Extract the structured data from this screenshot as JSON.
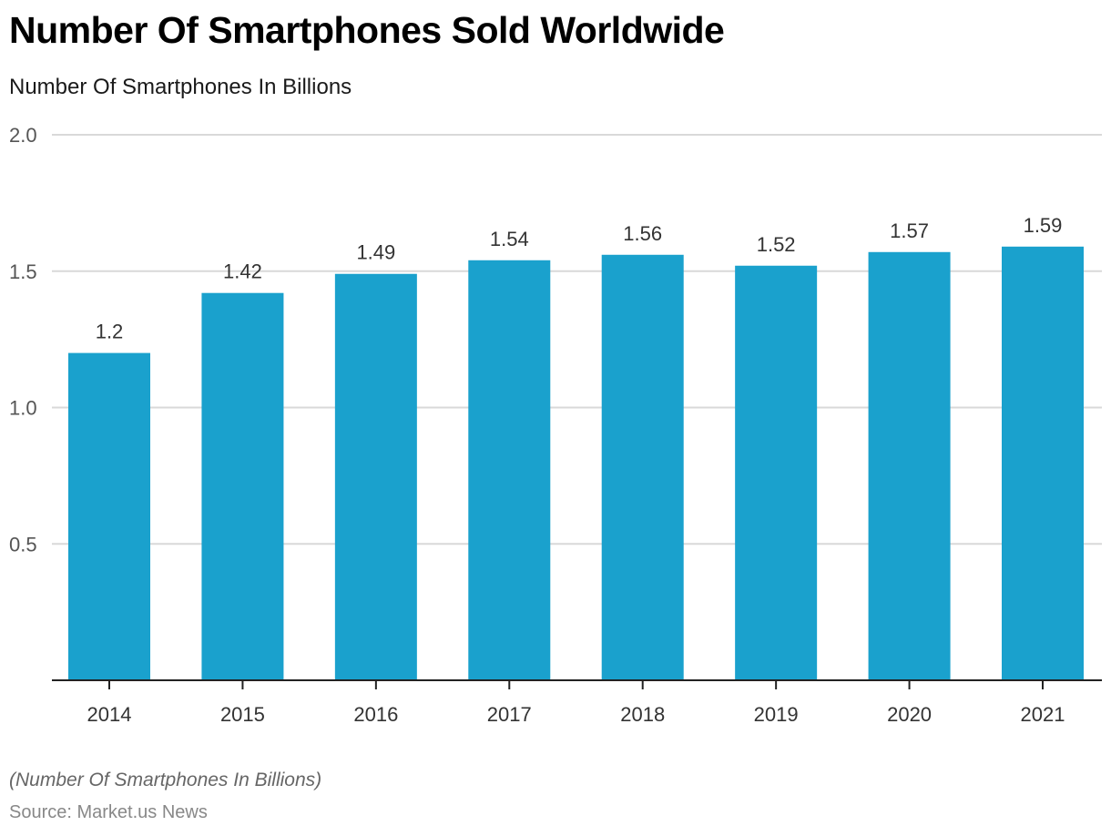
{
  "chart_data": {
    "type": "bar",
    "title": "Number Of Smartphones Sold Worldwide",
    "subtitle": "Number Of Smartphones In Billions",
    "xlabel": "",
    "ylabel": "Number Of Smartphones In Billions",
    "categories": [
      "2014",
      "2015",
      "2016",
      "2017",
      "2018",
      "2019",
      "2020",
      "2021"
    ],
    "values": [
      1.2,
      1.42,
      1.49,
      1.54,
      1.56,
      1.52,
      1.57,
      1.59
    ],
    "data_labels": [
      "1.2",
      "1.42",
      "1.49",
      "1.54",
      "1.56",
      "1.52",
      "1.57",
      "1.59"
    ],
    "ylim": [
      0,
      2.0
    ],
    "yticks": [
      0.5,
      1.0,
      1.5,
      2.0
    ],
    "ytick_labels": [
      "0.5",
      "1.0",
      "1.5",
      "2.0"
    ],
    "grid": true,
    "legend": "none",
    "bar_color": "#1aa1cd",
    "footnote": "(Number Of Smartphones In Billions)",
    "source": "Source: Market.us News"
  }
}
